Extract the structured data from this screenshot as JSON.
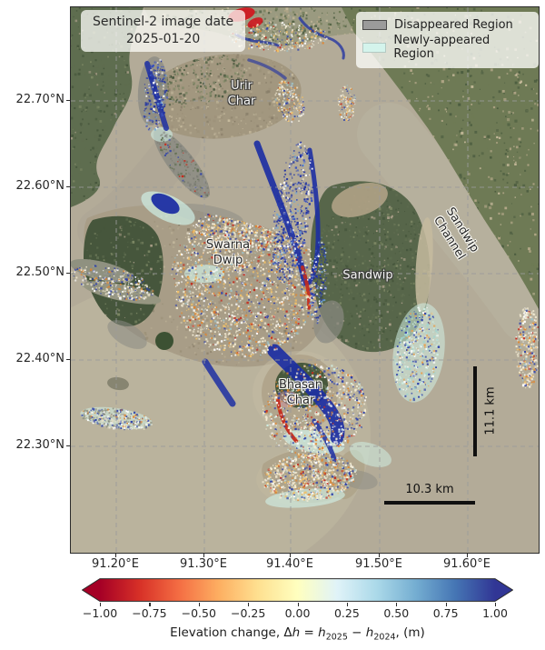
{
  "map": {
    "title_box": {
      "line1": "Sentinel-2 image date",
      "line2": "2025-01-20"
    },
    "legend": [
      {
        "label": "Disappeared Region",
        "swatch": "#9b9b9b"
      },
      {
        "label": "Newly-appeared Region",
        "swatch": "#d4f4ec"
      }
    ],
    "y_ticks": [
      "22.70°N",
      "22.60°N",
      "22.50°N",
      "22.40°N",
      "22.30°N"
    ],
    "x_ticks": [
      "91.20°E",
      "91.30°E",
      "91.40°E",
      "91.50°E",
      "91.60°E"
    ],
    "places": [
      {
        "name": "urir-char",
        "text": "Urir\nChar"
      },
      {
        "name": "swarna-dwip",
        "text": "Swarna\nDwip"
      },
      {
        "name": "sandwip",
        "text": "Sandwip"
      },
      {
        "name": "sandwip-channel",
        "text": "Sandwip Channel"
      },
      {
        "name": "bhasan-char",
        "text": "Bhasan\nChar"
      }
    ],
    "scalebars": {
      "vertical": "11.1 km",
      "horizontal": "10.3 km"
    },
    "colors": {
      "water": "#b3ab98",
      "water_light": "#c3bca4",
      "channel": "#b9b6a2",
      "forest": "#5e6d4f",
      "forest_dark": "#46563c",
      "farmland": "#6e7a55",
      "farm_tan": "#b3a788",
      "island_tan": "#a2977f",
      "swarna_tan": "#a89d87",
      "sandwip_green": "#57664a",
      "bhasan_ring": "#b1a58c",
      "bhasan_core": "#47583c",
      "pink": "#c98f9b",
      "disappeared_gray": "#8b8b83",
      "newly_cyan": "#cfeee4",
      "sediment_blue": "#1d2fa3",
      "blue_light": "#3a52c0",
      "erosion_red": "#c42a1c",
      "orange": "#e0852f",
      "cream": "#f5edd5",
      "white": "#ffffff",
      "islet": "#8f9180",
      "grid": "#9a9a9a"
    }
  },
  "colorbar": {
    "ticks": [
      "−1.00",
      "−0.75",
      "−0.50",
      "−0.25",
      "0.00",
      "0.25",
      "0.50",
      "0.75",
      "1.00"
    ],
    "gradient": [
      "#a50026",
      "#d73027",
      "#f46d43",
      "#fdae61",
      "#fee090",
      "#ffffbf",
      "#e0f3f8",
      "#abd9e9",
      "#74add1",
      "#4575b4",
      "#313695"
    ],
    "label": {
      "prefix": "Elevation change, Δ",
      "h1": "h",
      "eq": " = ",
      "h2": "h",
      "sub2025": "2025",
      "minus": " − ",
      "h3": "h",
      "sub2024": "2024",
      "suffix": ", (m)"
    }
  }
}
